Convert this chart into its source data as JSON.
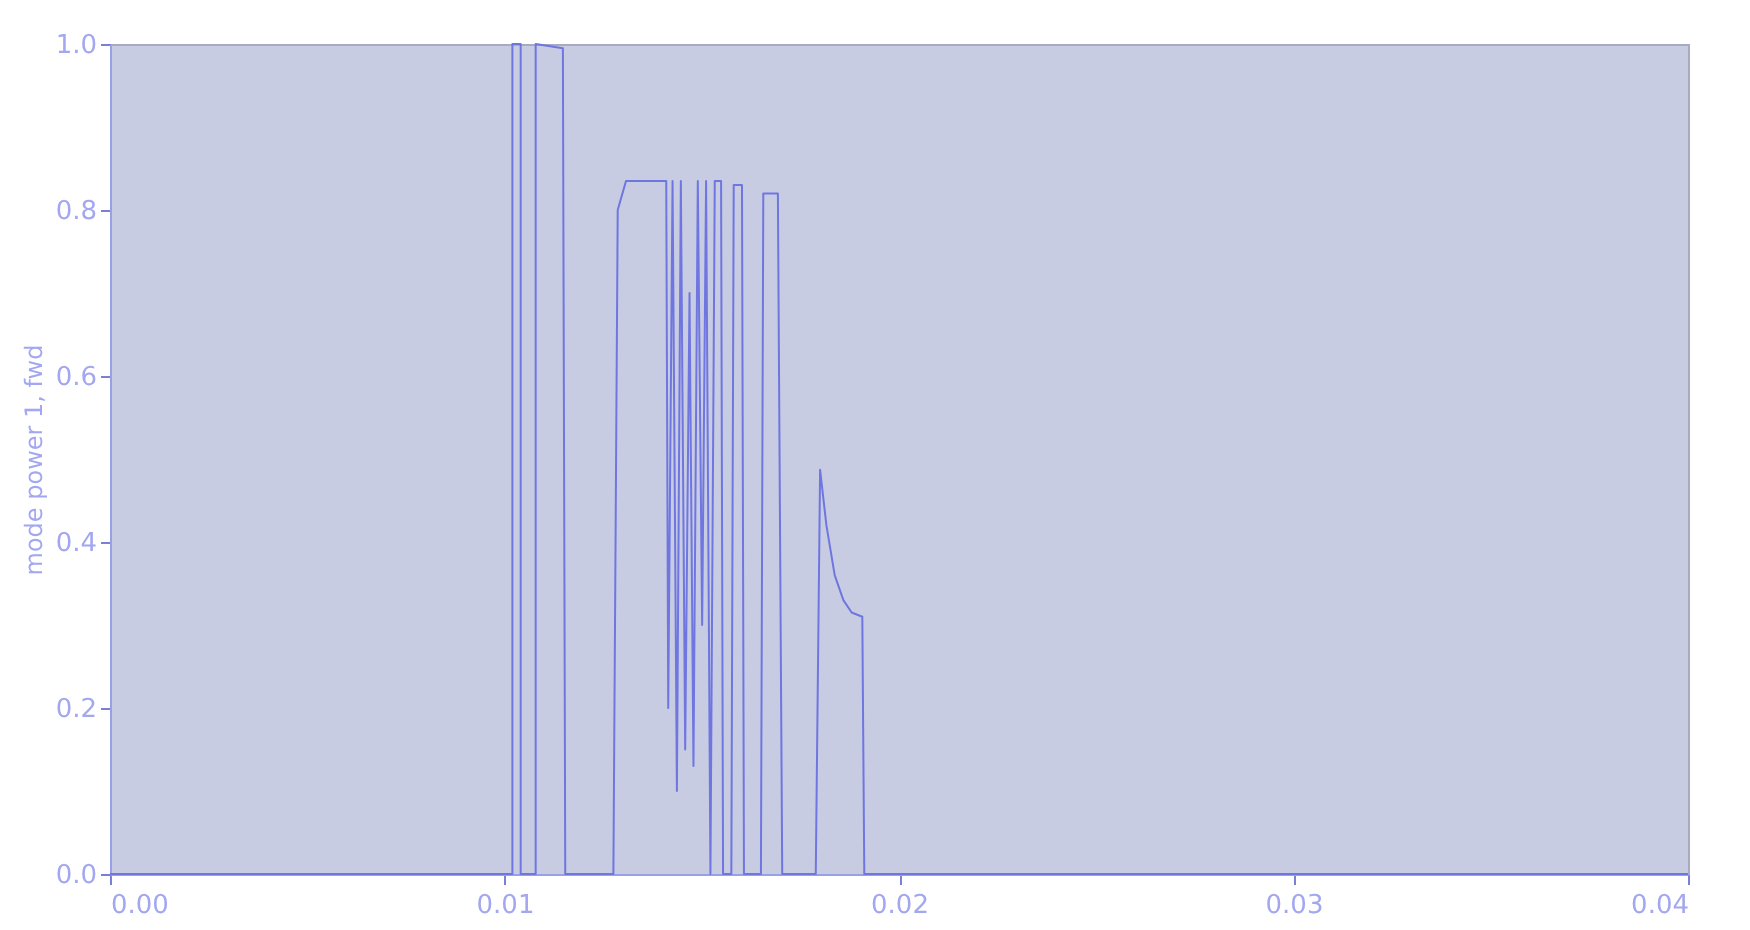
{
  "chart_data": {
    "type": "line",
    "ylabel": "mode power 1, fwd",
    "x": [
      0,
      0.0102,
      0.0102,
      0.01041,
      0.01041,
      0.01079,
      0.01079,
      0.01148,
      0.01154,
      0.01276,
      0.01287,
      0.01308,
      0.0141,
      0.01415,
      0.01426,
      0.01437,
      0.01447,
      0.01458,
      0.01469,
      0.01479,
      0.0149,
      0.01501,
      0.01511,
      0.01522,
      0.01533,
      0.01549,
      0.01554,
      0.01575,
      0.01581,
      0.01602,
      0.01607,
      0.0165,
      0.01656,
      0.01693,
      0.01704,
      0.01789,
      0.018,
      0.01816,
      0.01837,
      0.01859,
      0.0188,
      0.01907,
      0.01912,
      0.04
    ],
    "series": [
      {
        "color": "#6f76e0",
        "values": [
          0,
          0,
          1,
          1,
          0,
          0,
          1,
          0.995,
          0,
          0,
          0.8,
          0.835,
          0.835,
          0.2,
          0.835,
          0.1,
          0.835,
          0.15,
          0.7,
          0.13,
          0.835,
          0.3,
          0.835,
          0,
          0.835,
          0.835,
          0,
          0,
          0.83,
          0.83,
          0,
          0,
          0.82,
          0.82,
          0,
          0,
          0.487,
          0.42,
          0.36,
          0.33,
          0.315,
          0.31,
          0,
          0
        ]
      }
    ],
    "xlim": [
      0,
      0.04
    ],
    "ylim": [
      0,
      1
    ],
    "xticks": [
      {
        "value": 0,
        "label": "0.00"
      },
      {
        "value": 0.01,
        "label": "0.01"
      },
      {
        "value": 0.02,
        "label": "0.02"
      },
      {
        "value": 0.03,
        "label": "0.03"
      },
      {
        "value": 0.04,
        "label": "0.04"
      }
    ],
    "yticks": [
      {
        "value": 0,
        "label": "0.0"
      },
      {
        "value": 0.2,
        "label": "0.2"
      },
      {
        "value": 0.4,
        "label": "0.4"
      },
      {
        "value": 0.6,
        "label": "0.6"
      },
      {
        "value": 0.8,
        "label": "0.8"
      },
      {
        "value": 1,
        "label": "1.0"
      }
    ],
    "grid": false,
    "marker": "none",
    "line_style": "solid"
  }
}
